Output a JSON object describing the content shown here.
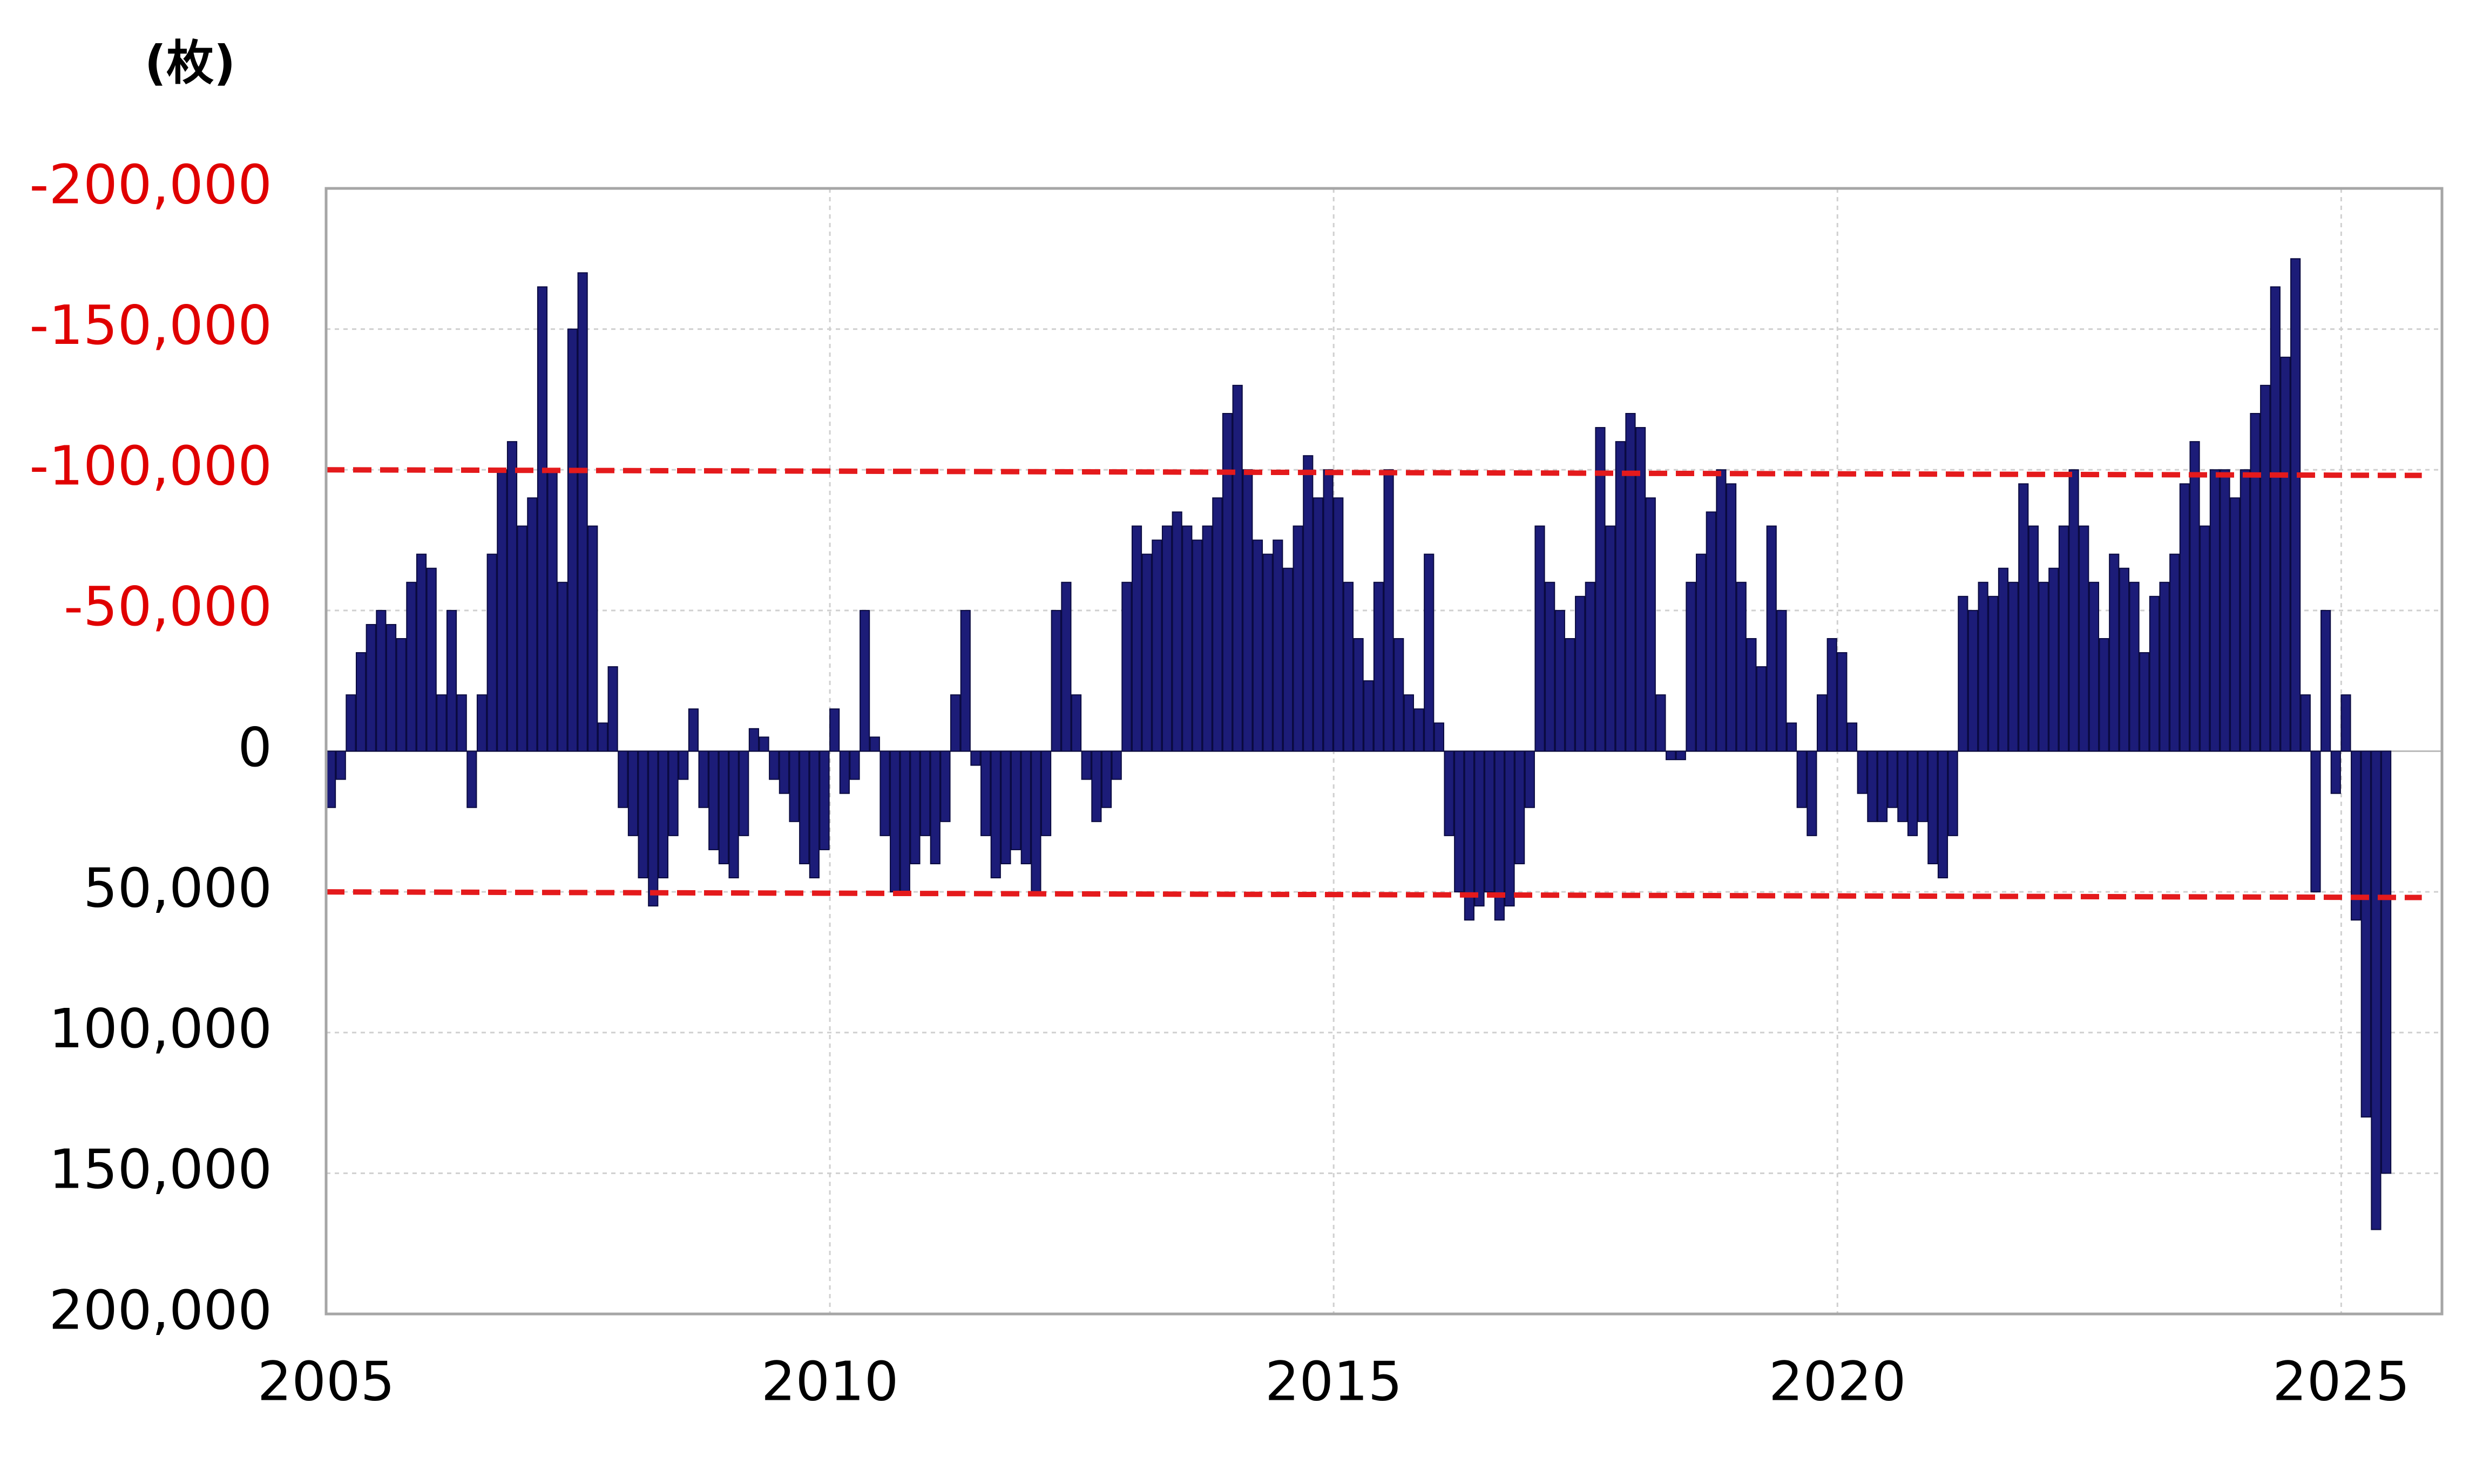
{
  "chart_data": {
    "type": "bar",
    "y_axis_label": "(枚)",
    "color": "#1c1c78",
    "negative_tick_color": "#e00000",
    "grid": true,
    "xlim": [
      2005,
      2026
    ],
    "xticks": [
      2005,
      2010,
      2015,
      2020,
      2025
    ],
    "ylim": [
      200000,
      -200000
    ],
    "yticks": [
      {
        "value": -200000,
        "label": "-200,000"
      },
      {
        "value": -150000,
        "label": "-150,000"
      },
      {
        "value": -100000,
        "label": "-100,000"
      },
      {
        "value": -50000,
        "label": "-50,000"
      },
      0,
      {
        "value": 50000,
        "label": "50,000"
      },
      {
        "value": 100000,
        "label": "100,000"
      },
      {
        "value": 150000,
        "label": "150,000"
      },
      {
        "value": 200000,
        "label": "200,000"
      }
    ],
    "reference_lines": [
      {
        "color": "#e41a1c",
        "x": [
          2005,
          2025.8
        ],
        "y": [
          -100000,
          -98000
        ]
      },
      {
        "color": "#e41a1c",
        "x": [
          2005,
          2025.8
        ],
        "y": [
          50000,
          52000
        ]
      }
    ],
    "x": [
      2005.0,
      2005.1,
      2005.2,
      2005.3,
      2005.4,
      2005.5,
      2005.6,
      2005.7,
      2005.8,
      2005.9,
      2006.0,
      2006.1,
      2006.2,
      2006.3,
      2006.4,
      2006.5,
      2006.6,
      2006.7,
      2006.8,
      2006.9,
      2007.0,
      2007.1,
      2007.2,
      2007.3,
      2007.4,
      2007.5,
      2007.6,
      2007.7,
      2007.8,
      2007.9,
      2008.0,
      2008.1,
      2008.2,
      2008.3,
      2008.4,
      2008.5,
      2008.6,
      2008.7,
      2008.8,
      2008.9,
      2009.0,
      2009.1,
      2009.2,
      2009.3,
      2009.4,
      2009.5,
      2009.6,
      2009.7,
      2009.8,
      2009.9,
      2010.0,
      2010.1,
      2010.2,
      2010.3,
      2010.4,
      2010.5,
      2010.6,
      2010.7,
      2010.8,
      2010.9,
      2011.0,
      2011.1,
      2011.2,
      2011.3,
      2011.4,
      2011.5,
      2011.6,
      2011.7,
      2011.8,
      2011.9,
      2012.0,
      2012.1,
      2012.2,
      2012.3,
      2012.4,
      2012.5,
      2012.6,
      2012.7,
      2012.8,
      2012.9,
      2013.0,
      2013.1,
      2013.2,
      2013.3,
      2013.4,
      2013.5,
      2013.6,
      2013.7,
      2013.8,
      2013.9,
      2014.0,
      2014.1,
      2014.2,
      2014.3,
      2014.4,
      2014.5,
      2014.6,
      2014.7,
      2014.8,
      2014.9,
      2015.0,
      2015.1,
      2015.2,
      2015.3,
      2015.4,
      2015.5,
      2015.6,
      2015.7,
      2015.8,
      2015.9,
      2016.0,
      2016.1,
      2016.2,
      2016.3,
      2016.4,
      2016.5,
      2016.6,
      2016.7,
      2016.8,
      2016.9,
      2017.0,
      2017.1,
      2017.2,
      2017.3,
      2017.4,
      2017.5,
      2017.6,
      2017.7,
      2017.8,
      2017.9,
      2018.0,
      2018.1,
      2018.2,
      2018.3,
      2018.4,
      2018.5,
      2018.6,
      2018.7,
      2018.8,
      2018.9,
      2019.0,
      2019.1,
      2019.2,
      2019.3,
      2019.4,
      2019.5,
      2019.6,
      2019.7,
      2019.8,
      2019.9,
      2020.0,
      2020.1,
      2020.2,
      2020.3,
      2020.4,
      2020.5,
      2020.6,
      2020.7,
      2020.8,
      2020.9,
      2021.0,
      2021.1,
      2021.2,
      2021.3,
      2021.4,
      2021.5,
      2021.6,
      2021.7,
      2021.8,
      2021.9,
      2022.0,
      2022.1,
      2022.2,
      2022.3,
      2022.4,
      2022.5,
      2022.6,
      2022.7,
      2022.8,
      2022.9,
      2023.0,
      2023.1,
      2023.2,
      2023.3,
      2023.4,
      2023.5,
      2023.6,
      2023.7,
      2023.8,
      2023.9,
      2024.0,
      2024.1,
      2024.2,
      2024.3,
      2024.4,
      2024.5,
      2024.6,
      2024.7,
      2024.8,
      2024.9,
      2025.0,
      2025.1,
      2025.2,
      2025.3,
      2025.4
    ],
    "values": [
      20000,
      10000,
      -20000,
      -35000,
      -45000,
      -50000,
      -45000,
      -40000,
      -60000,
      -70000,
      -65000,
      -20000,
      -50000,
      -20000,
      20000,
      -20000,
      -70000,
      -100000,
      -110000,
      -80000,
      -90000,
      -165000,
      -100000,
      -60000,
      -150000,
      -170000,
      -80000,
      -10000,
      -30000,
      20000,
      30000,
      45000,
      55000,
      45000,
      30000,
      10000,
      -15000,
      20000,
      35000,
      40000,
      45000,
      30000,
      -8000,
      -5000,
      10000,
      15000,
      25000,
      40000,
      45000,
      35000,
      -15000,
      15000,
      10000,
      -50000,
      -5000,
      30000,
      50000,
      50000,
      40000,
      30000,
      40000,
      25000,
      -20000,
      -50000,
      5000,
      30000,
      45000,
      40000,
      35000,
      40000,
      50000,
      30000,
      -50000,
      -60000,
      -20000,
      10000,
      25000,
      20000,
      10000,
      -60000,
      -80000,
      -70000,
      -75000,
      -80000,
      -85000,
      -80000,
      -75000,
      -80000,
      -90000,
      -120000,
      -130000,
      -100000,
      -75000,
      -70000,
      -75000,
      -65000,
      -80000,
      -105000,
      -90000,
      -100000,
      -90000,
      -60000,
      -40000,
      -25000,
      -60000,
      -100000,
      -40000,
      -20000,
      -15000,
      -70000,
      -10000,
      30000,
      50000,
      60000,
      55000,
      50000,
      60000,
      55000,
      40000,
      20000,
      -80000,
      -60000,
      -50000,
      -40000,
      -55000,
      -60000,
      -115000,
      -80000,
      -110000,
      -120000,
      -115000,
      -90000,
      -20000,
      3000,
      3000,
      -60000,
      -70000,
      -85000,
      -100000,
      -95000,
      -60000,
      -40000,
      -30000,
      -80000,
      -50000,
      -10000,
      20000,
      30000,
      -20000,
      -40000,
      -35000,
      -10000,
      15000,
      25000,
      25000,
      20000,
      25000,
      30000,
      25000,
      40000,
      45000,
      30000,
      -55000,
      -50000,
      -60000,
      -55000,
      -65000,
      -60000,
      -95000,
      -80000,
      -60000,
      -65000,
      -80000,
      -100000,
      -80000,
      -60000,
      -40000,
      -70000,
      -65000,
      -60000,
      -35000,
      -55000,
      -60000,
      -70000,
      -95000,
      -110000,
      -80000,
      -100000,
      -100000,
      -90000,
      -100000,
      -120000,
      -130000,
      -165000,
      -140000,
      -175000,
      -20000,
      50000,
      -50000,
      15000,
      -20000,
      60000,
      130000,
      170000,
      150000
    ]
  }
}
